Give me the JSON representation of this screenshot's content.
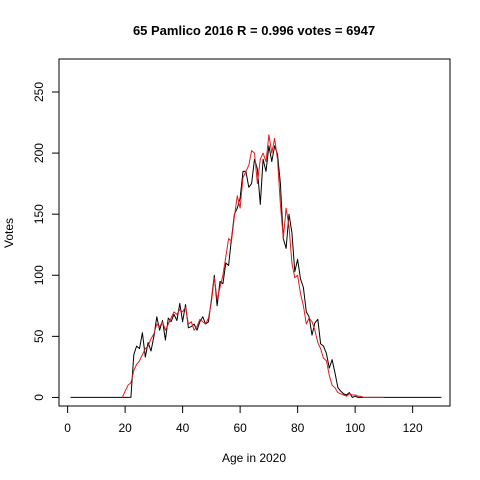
{
  "chart_data": {
    "type": "line",
    "title": "65 Pamlico 2016 R = 0.996 votes = 6947",
    "xlabel": "Age in 2020",
    "ylabel": "Votes",
    "xlim": [
      -3,
      133
    ],
    "ylim": [
      -7,
      277
    ],
    "xticks": [
      0,
      20,
      40,
      60,
      80,
      100,
      120
    ],
    "yticks": [
      0,
      50,
      100,
      150,
      200,
      250
    ],
    "grid": false,
    "series": [
      {
        "color": "#000000",
        "x": [
          1,
          2,
          3,
          4,
          5,
          6,
          7,
          8,
          9,
          10,
          11,
          12,
          13,
          14,
          15,
          16,
          17,
          18,
          19,
          20,
          21,
          22,
          23,
          24,
          25,
          26,
          27,
          28,
          29,
          30,
          31,
          32,
          33,
          34,
          35,
          36,
          37,
          38,
          39,
          40,
          41,
          42,
          43,
          44,
          45,
          46,
          47,
          48,
          49,
          50,
          51,
          52,
          53,
          54,
          55,
          56,
          57,
          58,
          59,
          60,
          61,
          62,
          63,
          64,
          65,
          66,
          67,
          68,
          69,
          70,
          71,
          72,
          73,
          74,
          75,
          76,
          77,
          78,
          79,
          80,
          81,
          82,
          83,
          84,
          85,
          86,
          87,
          88,
          89,
          90,
          91,
          92,
          93,
          94,
          95,
          96,
          97,
          98,
          99,
          100,
          101,
          102,
          103,
          104,
          105,
          106,
          107,
          108,
          109,
          110,
          111,
          112,
          113,
          114,
          115,
          116,
          117,
          118,
          119,
          120,
          121,
          122,
          123,
          124,
          125,
          126,
          127,
          128,
          129,
          130
        ],
        "y": [
          0,
          0,
          0,
          0,
          0,
          0,
          0,
          0,
          0,
          0,
          0,
          0,
          0,
          0,
          0,
          0,
          0,
          0,
          0,
          0,
          0,
          0,
          35,
          42,
          40,
          53,
          33,
          45,
          38,
          50,
          66,
          55,
          63,
          47,
          65,
          62,
          68,
          63,
          77,
          62,
          76,
          57,
          58,
          60,
          55,
          62,
          66,
          60,
          62,
          80,
          100,
          75,
          95,
          93,
          110,
          108,
          130,
          150,
          155,
          163,
          185,
          185,
          172,
          175,
          195,
          187,
          158,
          195,
          185,
          206,
          193,
          206,
          199,
          175,
          130,
          122,
          150,
          135,
          103,
          113,
          97,
          90,
          70,
          66,
          51,
          61,
          64,
          44,
          42,
          36,
          24,
          31,
          20,
          8,
          5,
          3,
          2,
          4,
          0,
          1,
          0,
          0,
          0,
          0,
          0,
          0,
          0,
          0,
          0,
          0,
          0,
          0,
          0,
          0,
          0,
          0,
          0,
          0,
          0,
          0,
          0,
          0,
          0,
          0,
          0,
          0,
          0,
          0,
          0,
          0
        ]
      },
      {
        "color": "#e31a1c",
        "x": [
          19,
          20,
          21,
          22,
          23,
          24,
          25,
          26,
          27,
          28,
          29,
          30,
          31,
          32,
          33,
          34,
          35,
          36,
          37,
          38,
          39,
          40,
          41,
          42,
          43,
          44,
          45,
          46,
          47,
          48,
          49,
          50,
          51,
          52,
          53,
          54,
          55,
          56,
          57,
          58,
          59,
          60,
          61,
          62,
          63,
          64,
          65,
          66,
          67,
          68,
          69,
          70,
          71,
          72,
          73,
          74,
          75,
          76,
          77,
          78,
          79,
          80,
          81,
          82,
          83,
          84,
          85,
          86,
          87,
          88,
          89,
          90,
          91,
          92,
          93,
          94,
          95,
          96,
          97,
          98,
          99,
          100,
          101,
          102,
          103,
          104,
          105,
          106,
          107,
          108,
          109,
          110
        ],
        "y": [
          0,
          5,
          10,
          12,
          22,
          27,
          30,
          35,
          40,
          42,
          48,
          52,
          60,
          58,
          62,
          55,
          60,
          65,
          70,
          68,
          72,
          70,
          74,
          60,
          62,
          55,
          58,
          64,
          62,
          60,
          65,
          78,
          98,
          80,
          90,
          100,
          115,
          130,
          128,
          148,
          165,
          155,
          180,
          185,
          190,
          202,
          200,
          175,
          195,
          200,
          193,
          215,
          200,
          212,
          195,
          158,
          130,
          155,
          140,
          110,
          98,
          100,
          85,
          75,
          60,
          65,
          62,
          55,
          45,
          40,
          32,
          30,
          18,
          10,
          8,
          4,
          3,
          2,
          1,
          3,
          2,
          2,
          1,
          1,
          0,
          0,
          0,
          0,
          0,
          0,
          0,
          0
        ]
      }
    ]
  }
}
